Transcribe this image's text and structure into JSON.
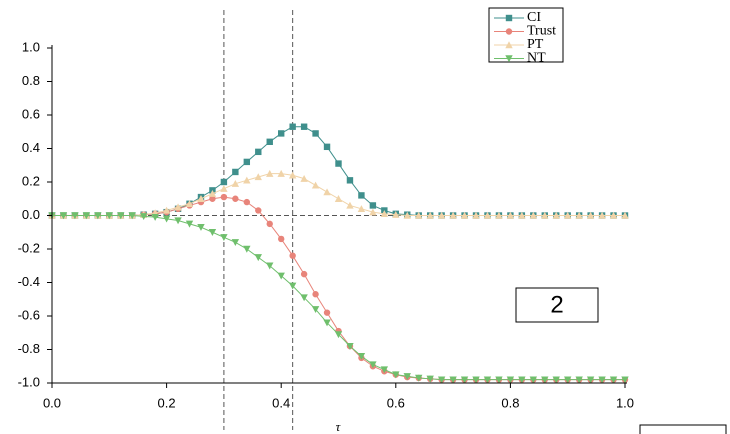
{
  "chart_data": {
    "type": "line",
    "x": [
      0,
      0.02,
      0.04,
      0.06,
      0.08,
      0.1,
      0.12,
      0.14,
      0.16,
      0.18,
      0.2,
      0.22,
      0.24,
      0.26,
      0.28,
      0.3,
      0.32,
      0.34,
      0.36,
      0.38,
      0.4,
      0.42,
      0.44,
      0.46,
      0.48,
      0.5,
      0.52,
      0.54,
      0.56,
      0.58,
      0.6,
      0.62,
      0.64,
      0.66,
      0.68,
      0.7,
      0.72,
      0.74,
      0.76,
      0.78,
      0.8,
      0.82,
      0.84,
      0.86,
      0.88,
      0.9,
      0.92,
      0.94,
      0.96,
      0.98,
      1
    ],
    "series": [
      {
        "name": "CI",
        "color": "#3f8f8c",
        "marker": "square",
        "values": [
          0,
          0,
          0,
          0,
          0,
          0,
          0,
          0,
          0.005,
          0.01,
          0.02,
          0.04,
          0.07,
          0.11,
          0.15,
          0.2,
          0.26,
          0.32,
          0.38,
          0.44,
          0.49,
          0.53,
          0.53,
          0.49,
          0.41,
          0.31,
          0.21,
          0.12,
          0.06,
          0.03,
          0.01,
          0.005,
          0,
          0,
          0,
          0,
          0,
          0,
          0,
          0,
          0,
          0,
          0,
          0,
          0,
          0,
          0,
          0,
          0,
          0,
          0
        ]
      },
      {
        "name": "Trust",
        "color": "#e8847a",
        "marker": "circle",
        "values": [
          0,
          0,
          0,
          0,
          0,
          0,
          0,
          0,
          0.005,
          0.01,
          0.02,
          0.04,
          0.06,
          0.08,
          0.1,
          0.11,
          0.1,
          0.08,
          0.03,
          -0.05,
          -0.14,
          -0.24,
          -0.35,
          -0.47,
          -0.58,
          -0.69,
          -0.78,
          -0.85,
          -0.9,
          -0.93,
          -0.95,
          -0.965,
          -0.97,
          -0.975,
          -0.98,
          -0.98,
          -0.98,
          -0.98,
          -0.98,
          -0.98,
          -0.98,
          -0.98,
          -0.98,
          -0.98,
          -0.98,
          -0.98,
          -0.98,
          -0.98,
          -0.98,
          -0.98,
          -0.98
        ]
      },
      {
        "name": "PT",
        "color": "#f0d3a8",
        "marker": "triangle-up",
        "values": [
          0,
          0,
          0,
          0,
          0,
          0,
          0,
          0,
          0.005,
          0.015,
          0.03,
          0.05,
          0.07,
          0.1,
          0.13,
          0.16,
          0.19,
          0.21,
          0.23,
          0.25,
          0.25,
          0.24,
          0.22,
          0.18,
          0.14,
          0.1,
          0.06,
          0.04,
          0.02,
          0.01,
          0.005,
          0,
          0,
          0,
          0,
          0,
          0,
          0,
          0,
          0,
          0,
          0,
          0,
          0,
          0,
          0,
          0,
          0,
          0,
          0,
          0
        ]
      },
      {
        "name": "NT",
        "color": "#6fbf6c",
        "marker": "triangle-down",
        "values": [
          0,
          0,
          0,
          0,
          0,
          0,
          0,
          0,
          -0.005,
          -0.01,
          -0.02,
          -0.03,
          -0.05,
          -0.07,
          -0.1,
          -0.13,
          -0.16,
          -0.2,
          -0.25,
          -0.3,
          -0.36,
          -0.42,
          -0.49,
          -0.56,
          -0.64,
          -0.71,
          -0.78,
          -0.84,
          -0.89,
          -0.92,
          -0.95,
          -0.96,
          -0.97,
          -0.975,
          -0.98,
          -0.98,
          -0.98,
          -0.98,
          -0.98,
          -0.98,
          -0.98,
          -0.98,
          -0.98,
          -0.98,
          -0.98,
          -0.98,
          -0.98,
          -0.98,
          -0.98,
          -0.98,
          -0.98
        ]
      }
    ],
    "x_label": "τ",
    "xlim": [
      0,
      1
    ],
    "xticks": [
      {
        "value": 0,
        "label": "0.0"
      },
      0.2,
      0.4,
      0.6,
      0.8,
      {
        "value": 1,
        "label": "1.0"
      }
    ],
    "ylim": [
      -1,
      1
    ],
    "yticks": [
      {
        "value": -1,
        "label": "-1.0"
      },
      -0.8,
      -0.6,
      -0.4,
      -0.2,
      {
        "value": 0,
        "label": "0.0"
      },
      0.2,
      0.4,
      0.6,
      0.8,
      {
        "value": 1,
        "label": "1.0"
      }
    ],
    "vlines": [
      0.3,
      0.42
    ],
    "hline": 0,
    "annotation": "2",
    "legend": "top-right"
  }
}
